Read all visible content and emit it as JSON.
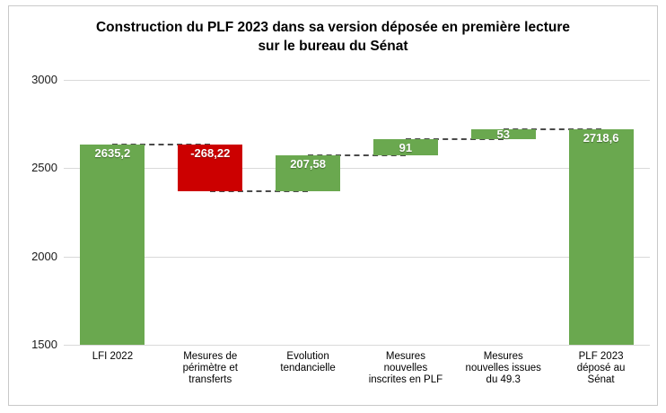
{
  "chart_data": {
    "type": "bar",
    "subtype": "waterfall",
    "title": "Construction du PLF 2023 dans sa version déposée en première lecture\nsur le bureau du Sénat",
    "categories": [
      "LFI 2022",
      "Mesures de\npérimètre et\ntransferts",
      "Evolution\ntendancielle",
      "Mesures\nnouvelles\ninscrites en PLF",
      "Mesures\nnouvelles issues\ndu 49.3",
      "PLF 2023\ndéposé au\nSénat"
    ],
    "values": [
      2635.2,
      -268.22,
      207.58,
      91,
      53,
      2718.6
    ],
    "bar_kinds": [
      "total",
      "delta",
      "delta",
      "delta",
      "delta",
      "total"
    ],
    "bar_labels": [
      "2635,2",
      "-268,22",
      "207,58",
      "91",
      "53",
      "2718,6"
    ],
    "ylim": [
      1500,
      3000
    ],
    "yticks": [
      1500,
      2000,
      2500,
      3000
    ],
    "ytick_labels": [
      "1500",
      "2000",
      "2500",
      "3000"
    ],
    "grid": true,
    "legend": "none",
    "colors": {
      "positive": "#6aa84f",
      "negative": "#cc0000",
      "total": "#6aa84f",
      "connector": "#4a4a4a",
      "gridline": "#d9d9d9"
    }
  }
}
